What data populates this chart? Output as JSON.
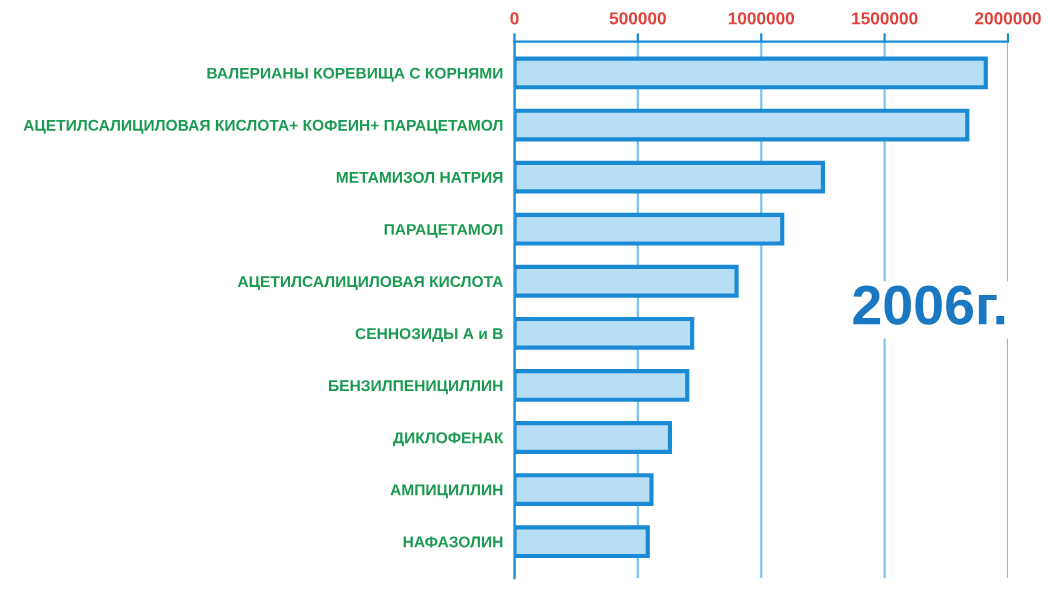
{
  "chart_data": {
    "type": "bar",
    "orientation": "horizontal",
    "categories": [
      "ВАЛЕРИАНЫ КОРЕВИЩА С КОРНЯМИ",
      "АЦЕТИЛСАЛИЦИЛОВАЯ КИСЛОТА+ КОФЕИН+ ПАРАЦЕТАМОЛ",
      "МЕТАМИЗОЛ НАТРИЯ",
      "ПАРАЦЕТАМОЛ",
      "АЦЕТИЛСАЛИЦИЛОВАЯ КИСЛОТА",
      "СЕННОЗИДЫ А и В",
      "БЕНЗИЛПЕНИЦИЛЛИН",
      "ДИКЛОФЕНАК",
      "АМПИЦИЛЛИН",
      "НАФАЗОЛИН"
    ],
    "values": [
      1910000,
      1835000,
      1250000,
      1085000,
      900000,
      720000,
      700000,
      630000,
      555000,
      540000
    ],
    "color": "#b8def5",
    "xlim": [
      0,
      2000000
    ],
    "xticks": [
      0,
      500000,
      1000000,
      1500000,
      2000000
    ],
    "grid": "x",
    "legend": false,
    "annotations": [
      "2006г."
    ]
  }
}
